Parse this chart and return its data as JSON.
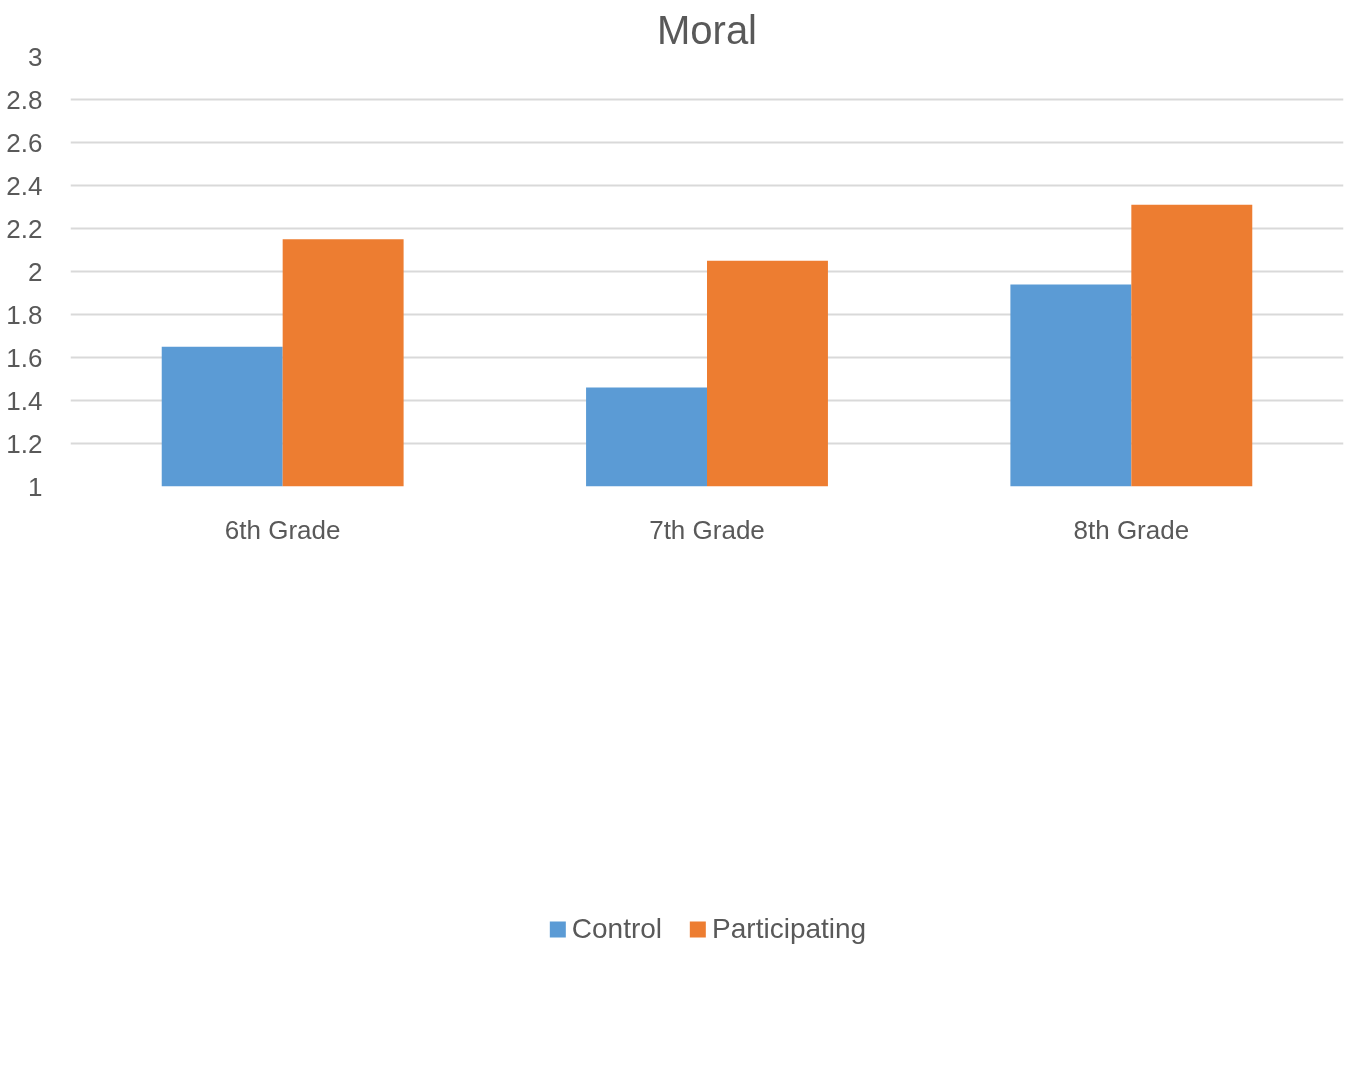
{
  "chart_data": {
    "type": "bar",
    "title": "Moral",
    "categories": [
      "6th Grade",
      "7th Grade",
      "8th Grade"
    ],
    "series": [
      {
        "name": "Control",
        "color": "#5b9bd5",
        "values": [
          1.65,
          1.46,
          1.94
        ]
      },
      {
        "name": "Participating",
        "color": "#ed7d31",
        "values": [
          2.15,
          2.05,
          2.31
        ]
      }
    ],
    "ylim": [
      1,
      3
    ],
    "yticks": [
      1,
      1.2,
      1.4,
      1.6,
      1.8,
      2,
      2.2,
      2.4,
      2.6,
      2.8,
      3
    ],
    "grid": "y",
    "legend": "bottom"
  }
}
